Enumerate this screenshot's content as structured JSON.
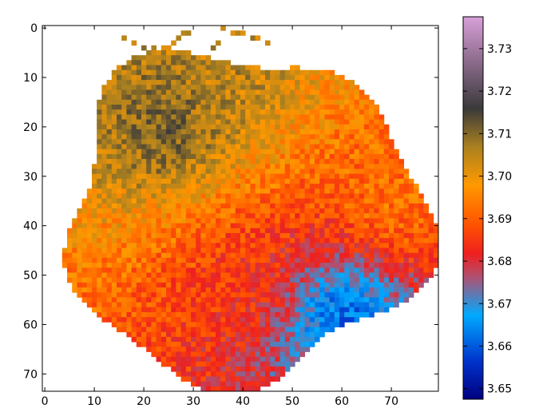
{
  "chart_data": {
    "type": "heatmap",
    "title": "",
    "xlabel": "",
    "ylabel": "",
    "xlim": [
      -0.5,
      79.5
    ],
    "ylim": [
      73.5,
      -0.5
    ],
    "x_ticks": [
      0,
      10,
      20,
      30,
      40,
      50,
      60,
      70
    ],
    "y_ticks": [
      0,
      10,
      20,
      30,
      40,
      50,
      60,
      70
    ],
    "grid_shape": [
      74,
      80
    ],
    "grid": false,
    "masked_background": "white",
    "colorbar": {
      "position": "right",
      "min": 3.6475,
      "max": 3.7375,
      "ticks": [
        3.65,
        3.66,
        3.67,
        3.68,
        3.69,
        3.7,
        3.71,
        3.72,
        3.73
      ],
      "tick_labels": [
        "3.65",
        "3.66",
        "3.67",
        "3.68",
        "3.69",
        "3.70",
        "3.71",
        "3.72",
        "3.73"
      ],
      "colormap_stops": [
        {
          "value": 0.0,
          "color": "#00007f"
        },
        {
          "value": 0.1,
          "color": "#0033cc"
        },
        {
          "value": 0.22,
          "color": "#00aaff"
        },
        {
          "value": 0.32,
          "color": "#b05070"
        },
        {
          "value": 0.38,
          "color": "#ee2020"
        },
        {
          "value": 0.46,
          "color": "#ff5500"
        },
        {
          "value": 0.56,
          "color": "#ff9900"
        },
        {
          "value": 0.66,
          "color": "#aa8020"
        },
        {
          "value": 0.76,
          "color": "#3a3a3a"
        },
        {
          "value": 0.88,
          "color": "#8a6a8a"
        },
        {
          "value": 1.0,
          "color": "#d8a0d8"
        }
      ]
    },
    "regions": [
      {
        "name": "upper-left",
        "approx_center": [
          25,
          20
        ],
        "approx_value": 3.712
      },
      {
        "name": "top-center",
        "approx_center": [
          38,
          10
        ],
        "approx_value": 3.705
      },
      {
        "name": "right",
        "approx_center": [
          70,
          35
        ],
        "approx_value": 3.693
      },
      {
        "name": "center-low",
        "approx_center": [
          40,
          50
        ],
        "approx_value": 3.685
      },
      {
        "name": "lower-right-blue",
        "approx_center": [
          60,
          58
        ],
        "approx_value": 3.66
      }
    ]
  }
}
